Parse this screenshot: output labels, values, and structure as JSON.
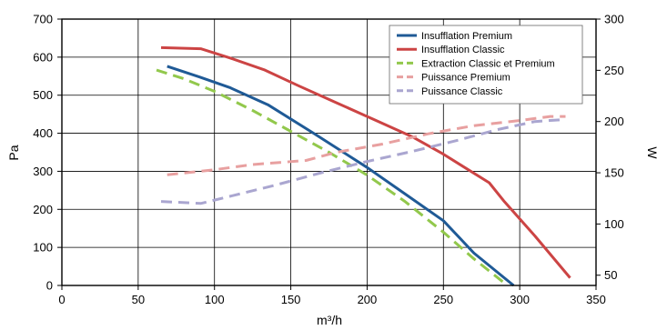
{
  "chart_data": {
    "type": "line",
    "xlabel": "m³/h",
    "ylabel_left": "Pa",
    "ylabel_right": "W",
    "xlim": [
      0,
      350
    ],
    "ylim_left": [
      0,
      700
    ],
    "ylim_right": [
      40,
      300
    ],
    "x_ticks": [
      "0",
      "50",
      "100",
      "150",
      "200",
      "250",
      "300",
      "350"
    ],
    "y_left_ticks": [
      "0",
      "100",
      "200",
      "300",
      "400",
      "500",
      "600",
      "700"
    ],
    "y_right_ticks": [
      "50",
      "100",
      "150",
      "200",
      "250",
      "300"
    ],
    "grid": true,
    "legend_position": "top-right",
    "series": [
      {
        "name": "Insufflation Premium",
        "axis": "left",
        "color": "#1f5a96",
        "style": "solid",
        "points": [
          [
            69,
            576
          ],
          [
            90,
            548
          ],
          [
            110,
            520
          ],
          [
            135,
            475
          ],
          [
            165,
            400
          ],
          [
            200,
            310
          ],
          [
            225,
            240
          ],
          [
            250,
            170
          ],
          [
            270,
            85
          ],
          [
            296,
            0
          ]
        ]
      },
      {
        "name": "Insufflation Classic",
        "axis": "left",
        "color": "#cc4444",
        "style": "solid",
        "points": [
          [
            65,
            625
          ],
          [
            91,
            622
          ],
          [
            110,
            598
          ],
          [
            133,
            566
          ],
          [
            155,
            525
          ],
          [
            180,
            480
          ],
          [
            205,
            435
          ],
          [
            230,
            390
          ],
          [
            250,
            345
          ],
          [
            262,
            315
          ],
          [
            280,
            270
          ],
          [
            290,
            220
          ],
          [
            310,
            130
          ],
          [
            333,
            20
          ]
        ]
      },
      {
        "name": "Extraction Classic et Premium",
        "axis": "left",
        "color": "#92c84c",
        "style": "dash",
        "points": [
          [
            62,
            566
          ],
          [
            80,
            543
          ],
          [
            100,
            510
          ],
          [
            125,
            460
          ],
          [
            150,
            405
          ],
          [
            175,
            350
          ],
          [
            200,
            290
          ],
          [
            225,
            220
          ],
          [
            250,
            140
          ],
          [
            270,
            70
          ],
          [
            292,
            0
          ]
        ]
      },
      {
        "name": "Puissance Premium",
        "axis": "right",
        "color": "#e8a0a0",
        "style": "dash",
        "points": [
          [
            69,
            148
          ],
          [
            100,
            153
          ],
          [
            125,
            158
          ],
          [
            160,
            162
          ],
          [
            180,
            170
          ],
          [
            210,
            178
          ],
          [
            240,
            188
          ],
          [
            270,
            196
          ],
          [
            300,
            201
          ],
          [
            320,
            205
          ],
          [
            330,
            205
          ]
        ]
      },
      {
        "name": "Puissance Classic",
        "axis": "right",
        "color": "#aaa6d0",
        "style": "dash",
        "points": [
          [
            65,
            122
          ],
          [
            91,
            120
          ],
          [
            110,
            127
          ],
          [
            140,
            138
          ],
          [
            170,
            150
          ],
          [
            200,
            161
          ],
          [
            230,
            171
          ],
          [
            260,
            182
          ],
          [
            285,
            192
          ],
          [
            310,
            200
          ],
          [
            330,
            202
          ]
        ]
      }
    ]
  }
}
